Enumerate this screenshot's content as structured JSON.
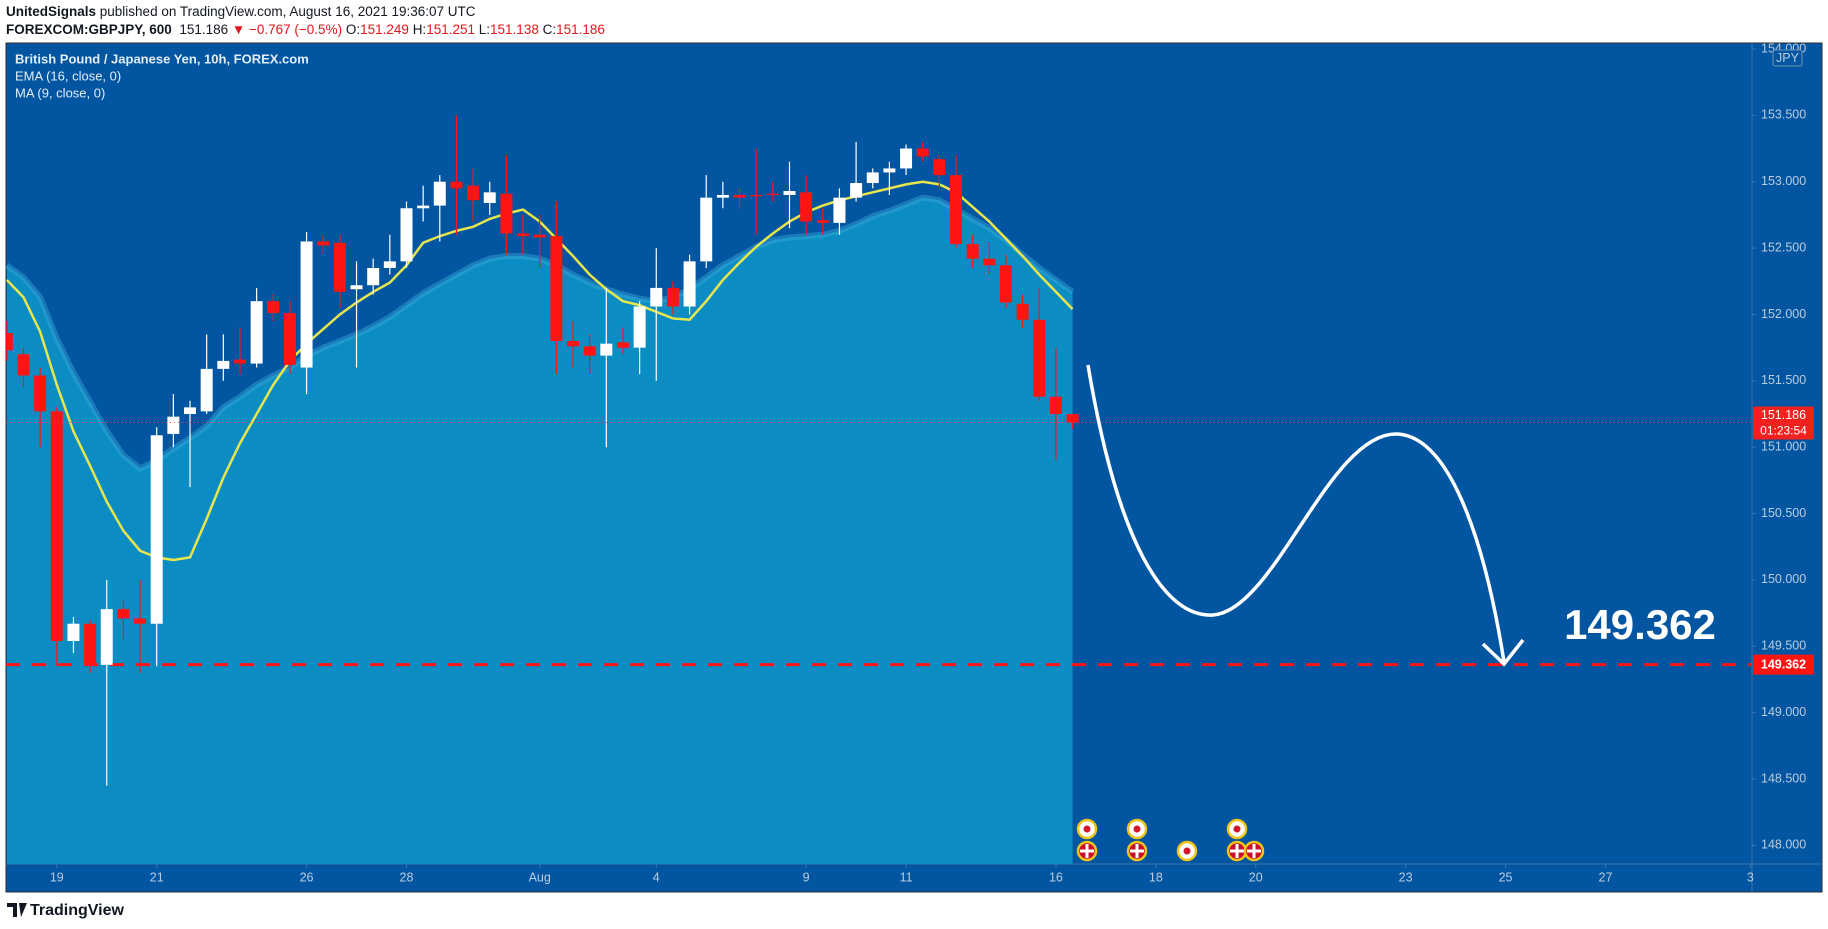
{
  "header": {
    "author": "UnitedSignals",
    "published": "published on TradingView.com, August 16, 2021 19:36:07 UTC",
    "symbol": "FOREXCOM:GBPJPY, 600",
    "change": "▼ −0.767 (−0.5%)",
    "ohlc_labels": [
      "O:",
      "H:",
      "L:",
      "C:"
    ]
  },
  "chart_data": {
    "type": "candlestick",
    "title": "British Pound / Japanese Yen, 10h, FOREX.com",
    "categories": [
      null,
      null,
      null,
      null,
      null,
      null,
      null,
      null,
      null,
      null,
      null,
      null,
      null,
      null,
      null,
      null,
      null,
      null,
      null,
      null,
      null,
      null,
      null,
      null,
      null,
      null,
      null,
      null,
      null,
      null,
      null,
      null,
      null,
      null,
      null,
      null,
      null,
      null,
      null,
      null,
      null,
      null,
      null,
      null,
      null,
      null,
      null,
      null,
      null,
      null,
      null,
      null,
      null,
      null,
      null,
      null,
      null,
      null,
      null,
      null,
      null,
      null,
      null,
      null,
      null
    ],
    "open": [
      151.86,
      151.7,
      151.54,
      151.27,
      149.54,
      149.67,
      149.36,
      149.78,
      149.71,
      149.67,
      151.1,
      151.25,
      151.27,
      151.59,
      151.66,
      151.63,
      152.1,
      152.01,
      151.6,
      152.55,
      152.54,
      152.19,
      152.22,
      152.35,
      152.4,
      152.8,
      152.82,
      153.0,
      152.97,
      152.84,
      152.91,
      152.61,
      152.6,
      152.59,
      151.8,
      151.76,
      151.69,
      151.79,
      151.75,
      152.06,
      152.2,
      152.06,
      152.4,
      152.88,
      152.9,
      152.9,
      152.91,
      152.9,
      152.92,
      152.71,
      152.69,
      152.88,
      152.99,
      153.07,
      153.1,
      153.25,
      153.17,
      153.05,
      152.53,
      152.42,
      152.37,
      152.08,
      151.96,
      151.38,
      151.249
    ],
    "high": [
      151.95,
      151.75,
      151.6,
      151.3,
      149.72,
      149.7,
      150.0,
      149.85,
      150.0,
      151.15,
      151.4,
      151.35,
      151.85,
      151.85,
      151.9,
      152.2,
      152.15,
      152.1,
      152.62,
      152.6,
      152.6,
      152.4,
      152.42,
      152.6,
      152.85,
      152.97,
      153.05,
      153.5,
      153.1,
      153.0,
      153.2,
      152.75,
      152.75,
      152.85,
      151.95,
      151.85,
      152.2,
      151.9,
      152.1,
      152.5,
      152.25,
      152.45,
      153.05,
      153.0,
      152.95,
      153.25,
      153.0,
      153.15,
      153.05,
      152.8,
      152.95,
      153.3,
      153.1,
      153.15,
      153.28,
      153.3,
      153.2,
      153.2,
      152.6,
      152.55,
      152.45,
      152.15,
      152.2,
      151.75,
      151.251
    ],
    "low": [
      151.65,
      151.45,
      151.0,
      149.35,
      149.45,
      149.3,
      148.45,
      149.55,
      149.3,
      149.35,
      151.0,
      150.7,
      151.25,
      151.5,
      151.55,
      151.6,
      151.95,
      151.55,
      151.4,
      152.45,
      152.05,
      151.6,
      152.15,
      152.3,
      152.35,
      152.7,
      152.55,
      152.6,
      152.7,
      152.75,
      152.45,
      152.45,
      152.35,
      151.55,
      151.6,
      151.55,
      151.0,
      151.7,
      151.55,
      151.5,
      152.0,
      152.0,
      152.35,
      152.8,
      152.8,
      152.6,
      152.85,
      152.65,
      152.6,
      152.6,
      152.6,
      152.85,
      152.95,
      152.9,
      153.05,
      153.15,
      152.95,
      152.5,
      152.35,
      152.3,
      152.05,
      151.9,
      151.35,
      150.9,
      151.138
    ],
    "close": [
      151.73,
      151.54,
      151.27,
      149.54,
      149.67,
      149.36,
      149.78,
      149.71,
      149.67,
      151.09,
      151.23,
      151.3,
      151.59,
      151.65,
      151.63,
      152.1,
      152.01,
      151.62,
      152.55,
      152.52,
      152.17,
      152.22,
      152.35,
      152.4,
      152.8,
      152.82,
      153.0,
      152.95,
      152.86,
      152.92,
      152.61,
      152.59,
      152.58,
      151.8,
      151.76,
      151.69,
      151.78,
      151.75,
      152.06,
      152.2,
      152.06,
      152.4,
      152.88,
      152.9,
      152.88,
      152.89,
      152.9,
      152.93,
      152.7,
      152.69,
      152.88,
      152.99,
      153.07,
      153.1,
      153.25,
      153.19,
      153.05,
      152.53,
      152.42,
      152.37,
      152.09,
      151.96,
      151.38,
      151.25,
      151.186
    ],
    "up_color": "#ffffff",
    "down_color": "#ff1414",
    "series": [
      {
        "name": "EMA (16, close, 0)",
        "color": "#0b8dc4",
        "style": "area",
        "values": [
          152.37,
          152.28,
          152.13,
          151.82,
          151.56,
          151.34,
          151.12,
          150.94,
          150.84,
          150.9,
          150.99,
          151.07,
          151.16,
          151.3,
          151.38,
          151.47,
          151.54,
          151.6,
          151.69,
          151.75,
          151.8,
          151.85,
          151.91,
          151.98,
          152.07,
          152.16,
          152.23,
          152.3,
          152.37,
          152.42,
          152.44,
          152.44,
          152.42,
          152.37,
          152.3,
          152.24,
          152.19,
          152.15,
          152.12,
          152.1,
          152.13,
          152.19,
          152.28,
          152.37,
          152.44,
          152.51,
          152.56,
          152.58,
          152.59,
          152.6,
          152.63,
          152.68,
          152.74,
          152.78,
          152.83,
          152.88,
          152.86,
          152.79,
          152.72,
          152.65,
          152.56,
          152.45,
          152.35,
          152.26,
          152.17
        ]
      },
      {
        "name": "MA (9, close, 0)",
        "color": "#e8e64c",
        "style": "line",
        "values": [
          152.26,
          152.13,
          151.87,
          151.47,
          151.12,
          150.86,
          150.59,
          150.37,
          150.22,
          150.17,
          150.15,
          150.17,
          150.46,
          150.77,
          151.03,
          151.25,
          151.47,
          151.65,
          151.78,
          151.89,
          152.0,
          152.09,
          152.17,
          152.24,
          152.37,
          152.54,
          152.59,
          152.63,
          152.66,
          152.72,
          152.76,
          152.79,
          152.7,
          152.57,
          152.44,
          152.3,
          152.19,
          152.1,
          152.07,
          152.02,
          151.97,
          151.96,
          152.1,
          152.26,
          152.39,
          152.51,
          152.61,
          152.7,
          152.77,
          152.82,
          152.86,
          152.89,
          152.92,
          152.95,
          152.98,
          153.0,
          152.98,
          152.92,
          152.81,
          152.7,
          152.57,
          152.44,
          152.3,
          152.17,
          152.04
        ]
      }
    ],
    "xlim": [
      -0.05,
      104.8
    ],
    "xticks": [
      {
        "value": 3,
        "label": "19"
      },
      {
        "value": 9,
        "label": "21"
      },
      {
        "value": 18,
        "label": "26"
      },
      {
        "value": 24,
        "label": "28"
      },
      {
        "value": 32,
        "label": "Aug"
      },
      {
        "value": 39,
        "label": "4"
      },
      {
        "value": 48,
        "label": "9"
      },
      {
        "value": 54,
        "label": "11"
      },
      {
        "value": 63,
        "label": "16"
      },
      {
        "value": 69,
        "label": "18"
      },
      {
        "value": 75,
        "label": "20"
      },
      {
        "value": 84,
        "label": "23"
      },
      {
        "value": 90,
        "label": "25"
      },
      {
        "value": 96,
        "label": "27"
      },
      {
        "value": 104.7,
        "label": "3"
      }
    ],
    "ylim": [
      147.86,
      154.045
    ],
    "yticks": [
      {
        "value": 148,
        "label": "148.000"
      },
      {
        "value": 148.5,
        "label": "148.500"
      },
      {
        "value": 149,
        "label": "149.000"
      },
      {
        "value": 149.5,
        "label": "149.500"
      },
      {
        "value": 150,
        "label": "150.000"
      },
      {
        "value": 150.5,
        "label": "150.500"
      },
      {
        "value": 151,
        "label": "151.000"
      },
      {
        "value": 151.5,
        "label": "151.500"
      },
      {
        "value": 152,
        "label": "152.000"
      },
      {
        "value": 152.5,
        "label": "152.500"
      },
      {
        "value": 153,
        "label": "153.000"
      },
      {
        "value": 153.5,
        "label": "153.500"
      },
      {
        "value": 154,
        "label": "154.000"
      }
    ],
    "grid": false,
    "y_unit": "JPY",
    "countdown": "01:23:54",
    "target": {
      "value": 149.362,
      "color": "#ff1414"
    }
  },
  "footer": {
    "brand": "TradingView"
  }
}
